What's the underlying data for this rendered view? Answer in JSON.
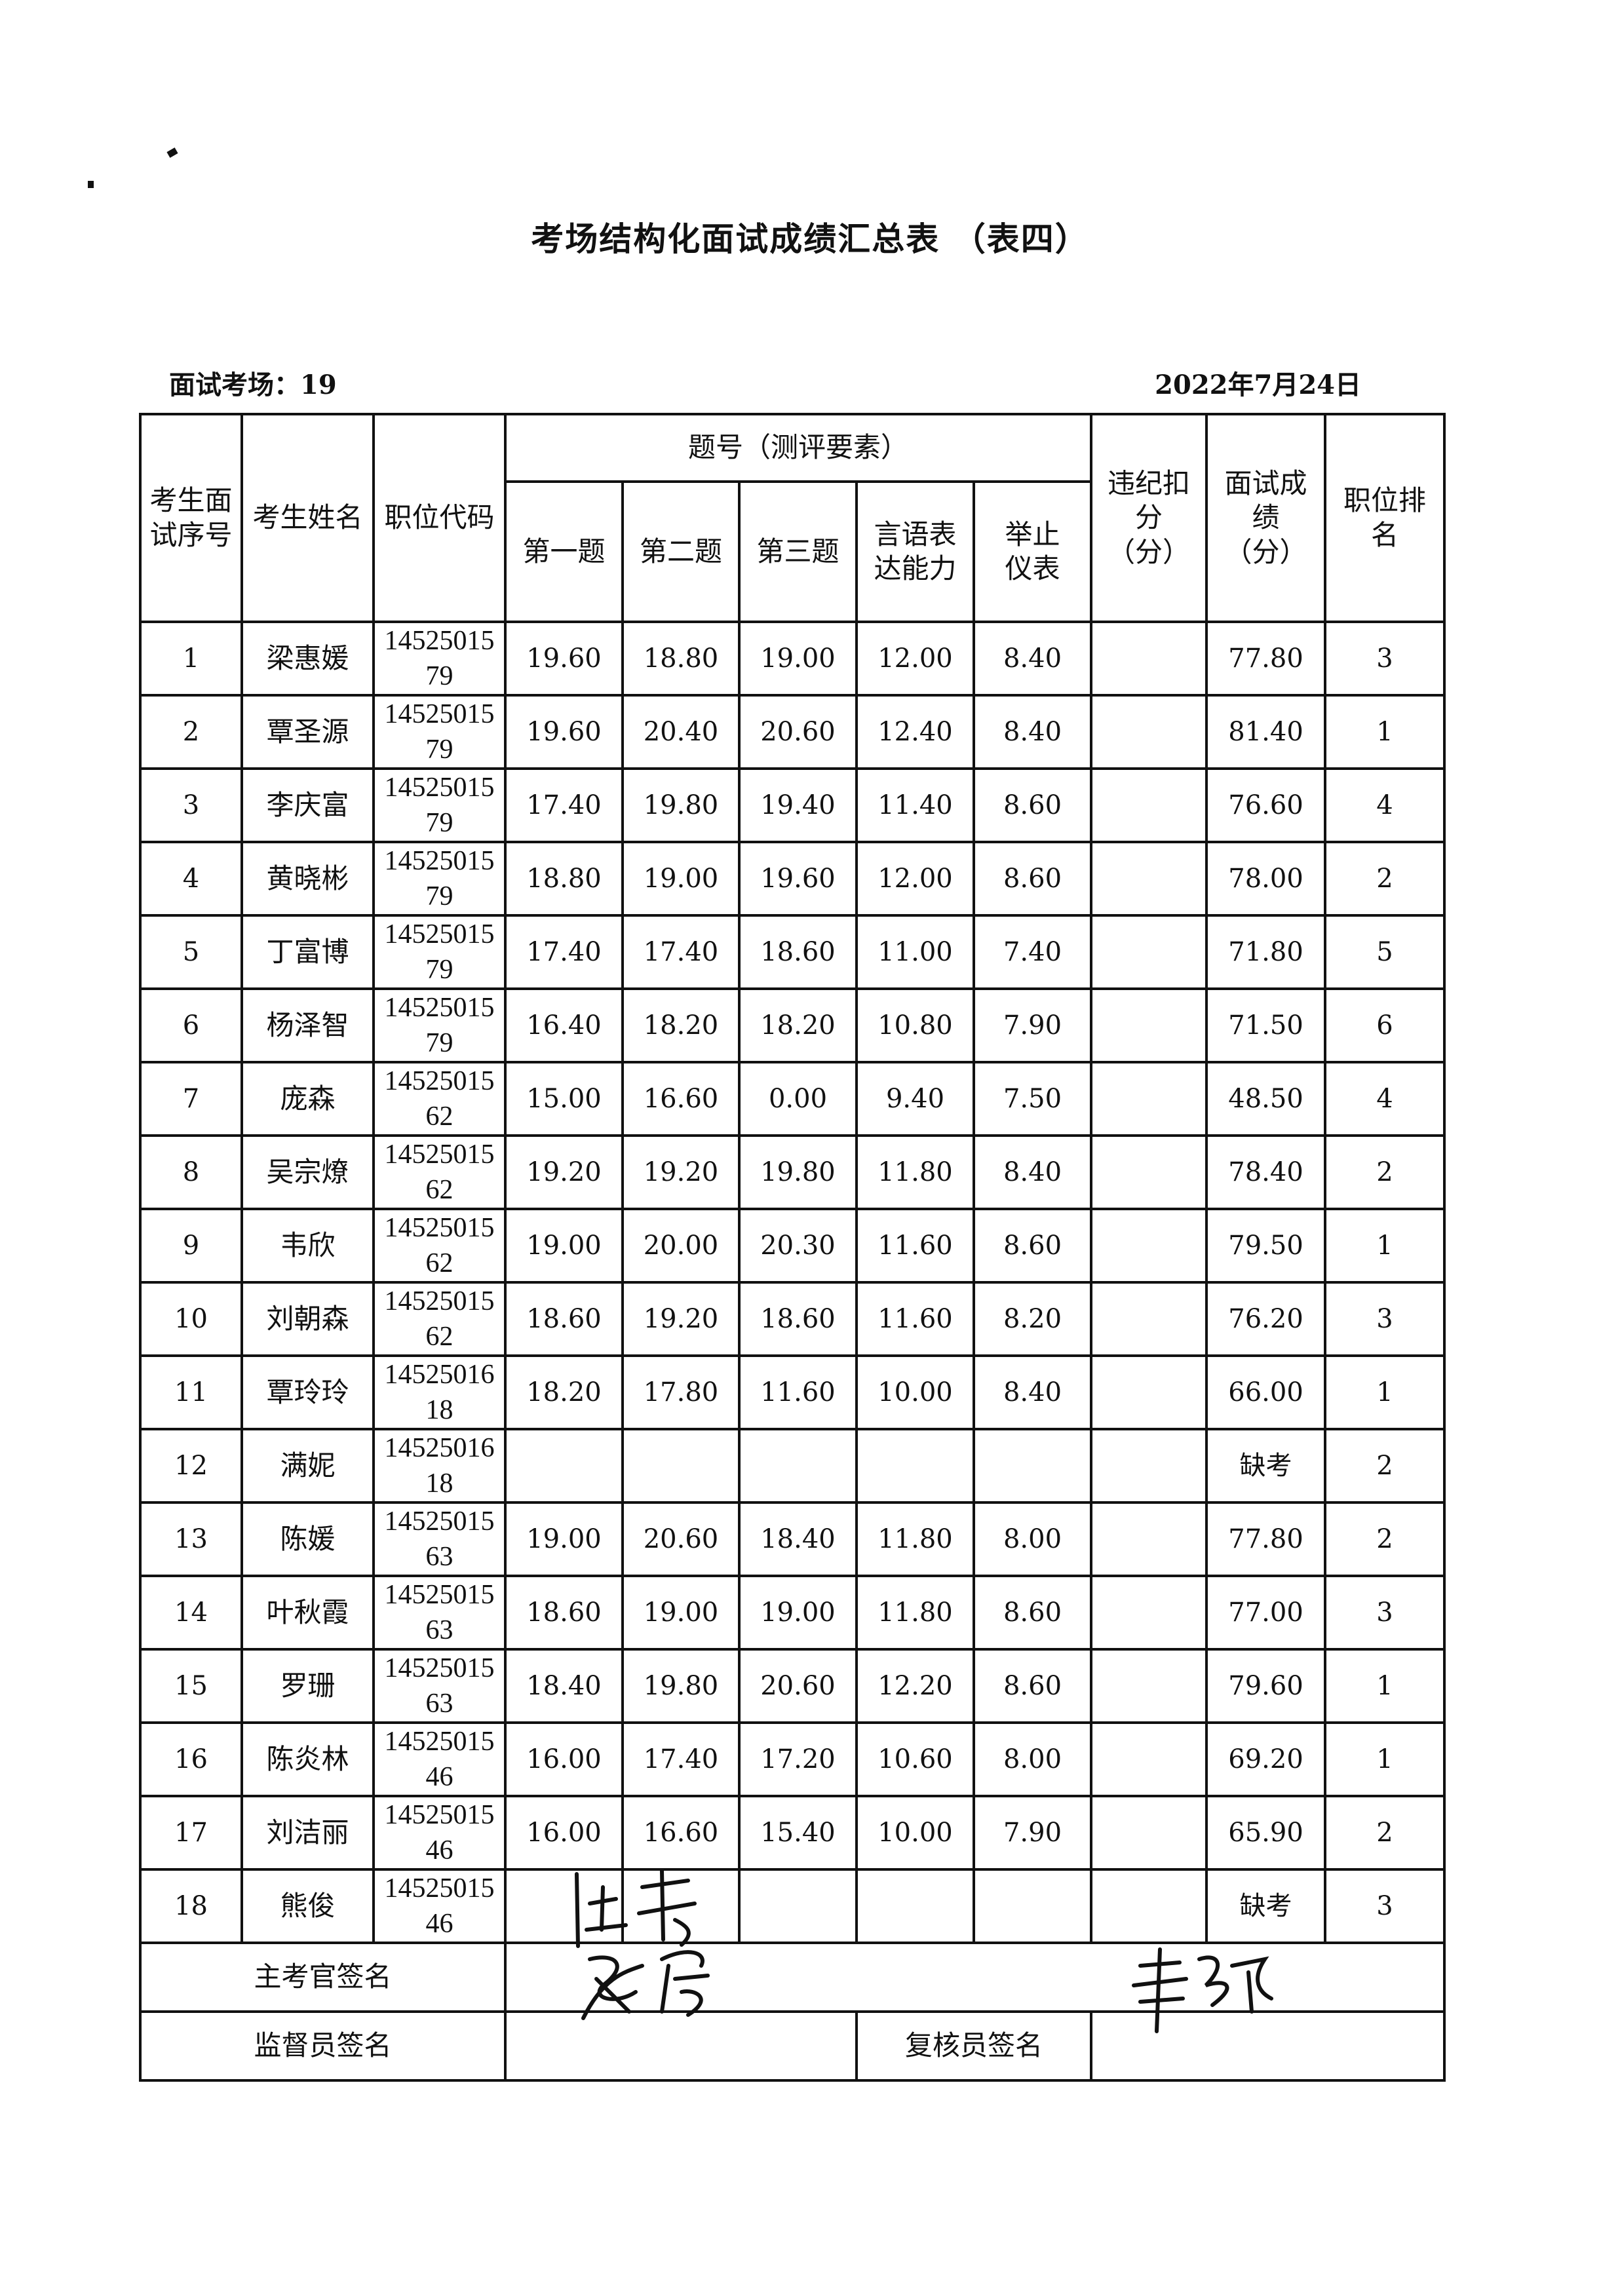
{
  "title": "考场结构化面试成绩汇总表 （表四）",
  "venue_label": "面试考场：19",
  "date": "2022年7月24日",
  "headers": {
    "seq": "考生面试序号",
    "name": "考生姓名",
    "code": "职位代码",
    "questions_group": "题号（测评要素）",
    "q1": "第一题",
    "q2": "第二题",
    "q3": "第三题",
    "speech": "言语表达能力",
    "demeanor": "举止仪表",
    "deduction": "违纪扣分（分）",
    "score": "面试成绩（分）",
    "rank": "职位排名"
  },
  "rows": [
    {
      "seq": "1",
      "name": "梁惠媛",
      "code_a": "14525015",
      "code_b": "79",
      "q1": "19.60",
      "q2": "18.80",
      "q3": "19.00",
      "speech": "12.00",
      "demeanor": "8.40",
      "deduction": "",
      "score": "77.80",
      "rank": "3"
    },
    {
      "seq": "2",
      "name": "覃圣源",
      "code_a": "14525015",
      "code_b": "79",
      "q1": "19.60",
      "q2": "20.40",
      "q3": "20.60",
      "speech": "12.40",
      "demeanor": "8.40",
      "deduction": "",
      "score": "81.40",
      "rank": "1"
    },
    {
      "seq": "3",
      "name": "李庆富",
      "code_a": "14525015",
      "code_b": "79",
      "q1": "17.40",
      "q2": "19.80",
      "q3": "19.40",
      "speech": "11.40",
      "demeanor": "8.60",
      "deduction": "",
      "score": "76.60",
      "rank": "4"
    },
    {
      "seq": "4",
      "name": "黄晓彬",
      "code_a": "14525015",
      "code_b": "79",
      "q1": "18.80",
      "q2": "19.00",
      "q3": "19.60",
      "speech": "12.00",
      "demeanor": "8.60",
      "deduction": "",
      "score": "78.00",
      "rank": "2"
    },
    {
      "seq": "5",
      "name": "丁富博",
      "code_a": "14525015",
      "code_b": "79",
      "q1": "17.40",
      "q2": "17.40",
      "q3": "18.60",
      "speech": "11.00",
      "demeanor": "7.40",
      "deduction": "",
      "score": "71.80",
      "rank": "5"
    },
    {
      "seq": "6",
      "name": "杨泽智",
      "code_a": "14525015",
      "code_b": "79",
      "q1": "16.40",
      "q2": "18.20",
      "q3": "18.20",
      "speech": "10.80",
      "demeanor": "7.90",
      "deduction": "",
      "score": "71.50",
      "rank": "6"
    },
    {
      "seq": "7",
      "name": "庞森",
      "code_a": "14525015",
      "code_b": "62",
      "q1": "15.00",
      "q2": "16.60",
      "q3": "0.00",
      "speech": "9.40",
      "demeanor": "7.50",
      "deduction": "",
      "score": "48.50",
      "rank": "4"
    },
    {
      "seq": "8",
      "name": "吴宗燎",
      "code_a": "14525015",
      "code_b": "62",
      "q1": "19.20",
      "q2": "19.20",
      "q3": "19.80",
      "speech": "11.80",
      "demeanor": "8.40",
      "deduction": "",
      "score": "78.40",
      "rank": "2"
    },
    {
      "seq": "9",
      "name": "韦欣",
      "code_a": "14525015",
      "code_b": "62",
      "q1": "19.00",
      "q2": "20.00",
      "q3": "20.30",
      "speech": "11.60",
      "demeanor": "8.60",
      "deduction": "",
      "score": "79.50",
      "rank": "1"
    },
    {
      "seq": "10",
      "name": "刘朝森",
      "code_a": "14525015",
      "code_b": "62",
      "q1": "18.60",
      "q2": "19.20",
      "q3": "18.60",
      "speech": "11.60",
      "demeanor": "8.20",
      "deduction": "",
      "score": "76.20",
      "rank": "3"
    },
    {
      "seq": "11",
      "name": "覃玲玲",
      "code_a": "14525016",
      "code_b": "18",
      "q1": "18.20",
      "q2": "17.80",
      "q3": "11.60",
      "speech": "10.00",
      "demeanor": "8.40",
      "deduction": "",
      "score": "66.00",
      "rank": "1"
    },
    {
      "seq": "12",
      "name": "满妮",
      "code_a": "14525016",
      "code_b": "18",
      "q1": "",
      "q2": "",
      "q3": "",
      "speech": "",
      "demeanor": "",
      "deduction": "",
      "score": "缺考",
      "rank": "2"
    },
    {
      "seq": "13",
      "name": "陈媛",
      "code_a": "14525015",
      "code_b": "63",
      "q1": "19.00",
      "q2": "20.60",
      "q3": "18.40",
      "speech": "11.80",
      "demeanor": "8.00",
      "deduction": "",
      "score": "77.80",
      "rank": "2"
    },
    {
      "seq": "14",
      "name": "叶秋霞",
      "code_a": "14525015",
      "code_b": "63",
      "q1": "18.60",
      "q2": "19.00",
      "q3": "19.00",
      "speech": "11.80",
      "demeanor": "8.60",
      "deduction": "",
      "score": "77.00",
      "rank": "3"
    },
    {
      "seq": "15",
      "name": "罗珊",
      "code_a": "14525015",
      "code_b": "63",
      "q1": "18.40",
      "q2": "19.80",
      "q3": "20.60",
      "speech": "12.20",
      "demeanor": "8.60",
      "deduction": "",
      "score": "79.60",
      "rank": "1"
    },
    {
      "seq": "16",
      "name": "陈炎林",
      "code_a": "14525015",
      "code_b": "46",
      "q1": "16.00",
      "q2": "17.40",
      "q3": "17.20",
      "speech": "10.60",
      "demeanor": "8.00",
      "deduction": "",
      "score": "69.20",
      "rank": "1"
    },
    {
      "seq": "17",
      "name": "刘洁丽",
      "code_a": "14525015",
      "code_b": "46",
      "q1": "16.00",
      "q2": "16.60",
      "q3": "15.40",
      "speech": "10.00",
      "demeanor": "7.90",
      "deduction": "",
      "score": "65.90",
      "rank": "2"
    },
    {
      "seq": "18",
      "name": "熊俊",
      "code_a": "14525015",
      "code_b": "46",
      "q1": "",
      "q2": "",
      "q3": "",
      "speech": "",
      "demeanor": "",
      "deduction": "",
      "score": "缺考",
      "rank": "3"
    }
  ],
  "signatures": {
    "chief_examiner_label": "主考官签名",
    "supervisor_label": "监督员签名",
    "reviewer_label": "复核员签名"
  }
}
